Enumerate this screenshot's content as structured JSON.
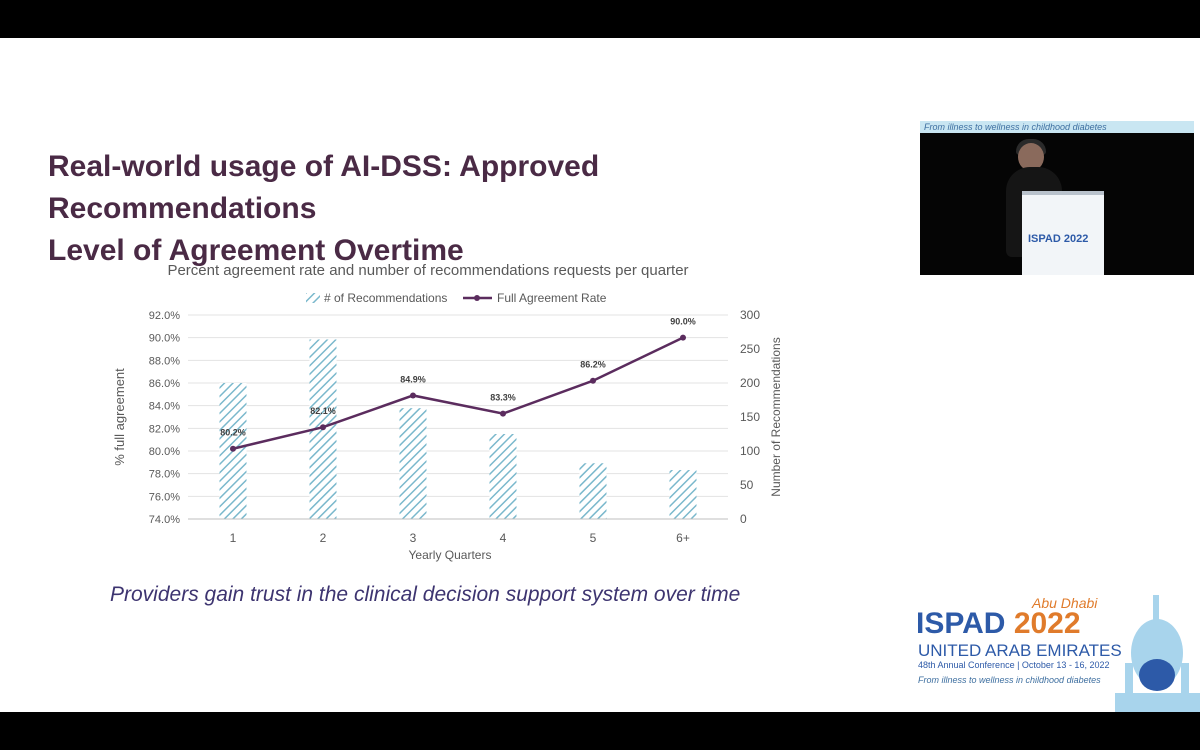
{
  "slide": {
    "title_plain": "Real-world usage of AI-DSS: ",
    "title_bold": "Approved Recommendations",
    "title_line2": "Level of Agreement Overtime",
    "caption": "Providers gain trust in the clinical decision support system over time"
  },
  "video": {
    "banner_text": "From illness to wellness in childhood diabetes",
    "podium_text": "ISPAD 2022"
  },
  "logo": {
    "city": "Abu Dhabi",
    "name": "ISPAD",
    "year": "2022",
    "country": "UNITED ARAB EMIRATES",
    "conference": "48th Annual Conference | October 13 - 16, 2022",
    "tagline": "From illness to wellness in childhood diabetes",
    "colors": {
      "blue": "#2d5aa8",
      "orange": "#e07b2b",
      "light_blue": "#a8d4ec"
    }
  },
  "chart_data": {
    "type": "bar+line",
    "title": "Percent agreement rate and number of recommendations requests per quarter",
    "xlabel": "Yearly Quarters",
    "ylabel_left": "% full agreement",
    "ylabel_right": "Number of Recommendations",
    "categories": [
      "1",
      "2",
      "3",
      "4",
      "5",
      "6+"
    ],
    "ylim_left": [
      74,
      92
    ],
    "ylim_right": [
      0,
      300
    ],
    "left_ticks": [
      "74.0%",
      "76.0%",
      "78.0%",
      "80.0%",
      "82.0%",
      "84.0%",
      "86.0%",
      "88.0%",
      "90.0%",
      "92.0%"
    ],
    "right_ticks": [
      "0",
      "50",
      "100",
      "150",
      "200",
      "250",
      "300"
    ],
    "legend_position": "top",
    "grid": true,
    "series": [
      {
        "name": "# of Recommendations",
        "kind": "bar",
        "axis": "right",
        "pattern": "diagonal-hatch",
        "color": "#7ab8cc",
        "values": [
          200,
          264,
          163,
          125,
          82,
          72
        ]
      },
      {
        "name": "Full Agreement Rate",
        "kind": "line",
        "axis": "left",
        "color": "#5b2c5e",
        "values": [
          80.2,
          82.1,
          84.9,
          83.3,
          86.2,
          90.0
        ],
        "labels": [
          "80.2%",
          "82.1%",
          "84.9%",
          "83.3%",
          "86.2%",
          "90.0%"
        ]
      }
    ]
  }
}
